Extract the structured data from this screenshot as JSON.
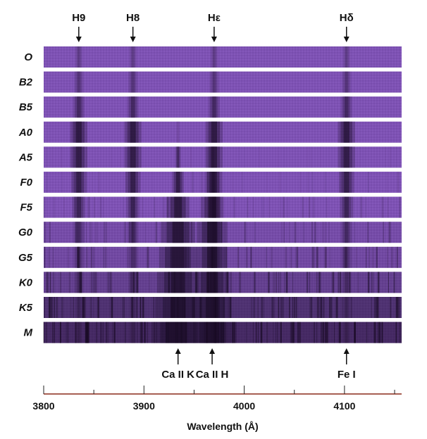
{
  "figure": {
    "top_labels": [
      {
        "id": "h9",
        "text": "H9",
        "wavelength": 3835
      },
      {
        "id": "h8",
        "text": "H8",
        "wavelength": 3889
      },
      {
        "id": "heps",
        "text": "Hε",
        "wavelength": 3970
      },
      {
        "id": "hdelta",
        "text": "Hδ",
        "wavelength": 4102
      }
    ],
    "bottom_labels": [
      {
        "id": "caiik",
        "text": "Ca II K",
        "wavelength": 3934
      },
      {
        "id": "caiih",
        "text": "Ca II H",
        "wavelength": 3968
      },
      {
        "id": "fei",
        "text": "Fe I",
        "wavelength": 4102
      }
    ],
    "spectral_classes": [
      "O",
      "B2",
      "B5",
      "A0",
      "A5",
      "F0",
      "F5",
      "G0",
      "G5",
      "K0",
      "K5",
      "M"
    ],
    "axis": {
      "title": "Wavelength (Å)",
      "min": 3800,
      "max": 4157,
      "ticks": [
        3800,
        3900,
        4000,
        4100
      ]
    },
    "colors": {
      "strip": "#7e52b4",
      "line": "#170a22",
      "axis_line": "#8a2a1a"
    }
  }
}
